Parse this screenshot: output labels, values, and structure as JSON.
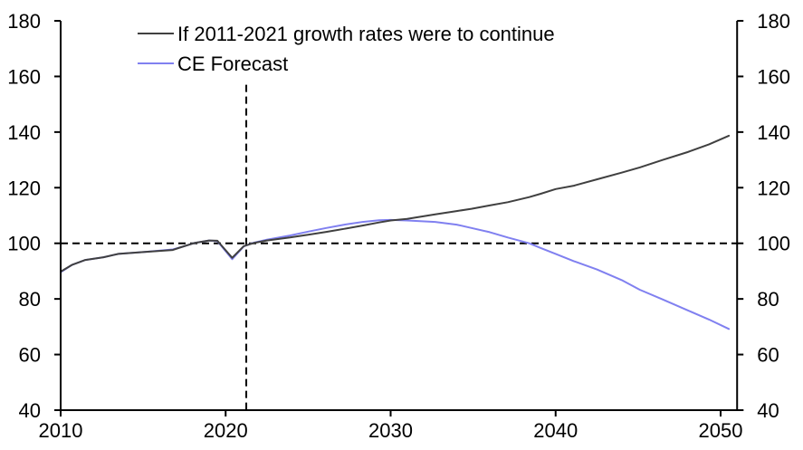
{
  "chart_data": {
    "type": "line",
    "title": "",
    "xlabel": "",
    "ylabel": "",
    "ylabel_right": "",
    "xlim": [
      2010,
      2051
    ],
    "ylim": [
      40,
      180
    ],
    "x_ticks": [
      2010,
      2020,
      2030,
      2040,
      2050
    ],
    "x_tick_labels": [
      "2010",
      "2020",
      "2030",
      "2040",
      "2050"
    ],
    "y_ticks": [
      40,
      60,
      80,
      100,
      120,
      140,
      160,
      180
    ],
    "y_tick_labels": [
      "40",
      "60",
      "80",
      "100",
      "120",
      "140",
      "160",
      "180"
    ],
    "y_ticks_right": [
      40,
      60,
      80,
      100,
      120,
      140,
      160,
      180
    ],
    "y_tick_labels_right": [
      "40",
      "60",
      "80",
      "100",
      "120",
      "140",
      "160",
      "180"
    ],
    "grid": false,
    "legend": {
      "placement": "top-left",
      "entries": [
        "If 2011-2021 growth rates were to continue",
        "CE Forecast"
      ]
    },
    "reference_lines": [
      {
        "orientation": "horizontal",
        "value": 100,
        "style": "dashed",
        "color": "#000000"
      },
      {
        "orientation": "vertical",
        "value": 2021.25,
        "from": 40,
        "to": 157,
        "style": "dashed",
        "color": "#000000"
      }
    ],
    "series": [
      {
        "name": "CE Forecast",
        "color": "#8080F0",
        "x": [
          2010,
          2010.7,
          2011.5,
          2012.6,
          2013.5,
          2015.1,
          2016.8,
          2017.3,
          2018.1,
          2019.0,
          2019.5,
          2020.4,
          2021.1,
          2021.7,
          2022.5,
          2023.9,
          2025.0,
          2026.1,
          2027.2,
          2028.3,
          2029.3,
          2030.0,
          2031.0,
          2032.7,
          2034.0,
          2034.9,
          2036.0,
          2037.1,
          2038.4,
          2039.1,
          2040.0,
          2041.1,
          2042.5,
          2044.0,
          2045.1,
          2046.5,
          2048.0,
          2049.3,
          2050.5
        ],
        "values": [
          89.6,
          92.3,
          94.0,
          95.0,
          96.2,
          96.9,
          97.8,
          98.6,
          100.1,
          101.0,
          100.8,
          94.3,
          98.9,
          100.2,
          101.3,
          102.8,
          104.2,
          105.5,
          106.7,
          107.7,
          108.3,
          108.4,
          108.2,
          107.7,
          106.7,
          105.5,
          104.0,
          102.1,
          100.0,
          98.3,
          96.2,
          93.6,
          90.6,
          86.8,
          83.3,
          79.8,
          75.9,
          72.6,
          69.2
        ]
      },
      {
        "name": "If 2011-2021 growth rates were to continue",
        "color": "#404040",
        "x": [
          2010,
          2010.7,
          2011.5,
          2012.6,
          2013.5,
          2015.1,
          2016.8,
          2017.3,
          2018.1,
          2019.0,
          2019.5,
          2020.4,
          2021.1,
          2021.7,
          2022.5,
          2023.9,
          2025.0,
          2026.1,
          2027.2,
          2028.3,
          2029.3,
          2030.0,
          2031.0,
          2032.7,
          2034.0,
          2034.9,
          2036.0,
          2037.1,
          2038.4,
          2039.1,
          2040.0,
          2041.1,
          2042.5,
          2044.0,
          2045.1,
          2046.5,
          2048.0,
          2049.3,
          2050.5
        ],
        "values": [
          89.8,
          92.3,
          94.0,
          95.0,
          96.2,
          96.9,
          97.6,
          98.6,
          100.1,
          101.0,
          100.9,
          94.8,
          99.0,
          100.1,
          101.0,
          102.1,
          103.1,
          104.1,
          105.2,
          106.4,
          107.5,
          108.2,
          108.8,
          110.4,
          111.6,
          112.4,
          113.6,
          114.8,
          116.6,
          117.8,
          119.5,
          120.7,
          123.0,
          125.4,
          127.3,
          130.0,
          132.8,
          135.6,
          138.7
        ]
      }
    ]
  }
}
